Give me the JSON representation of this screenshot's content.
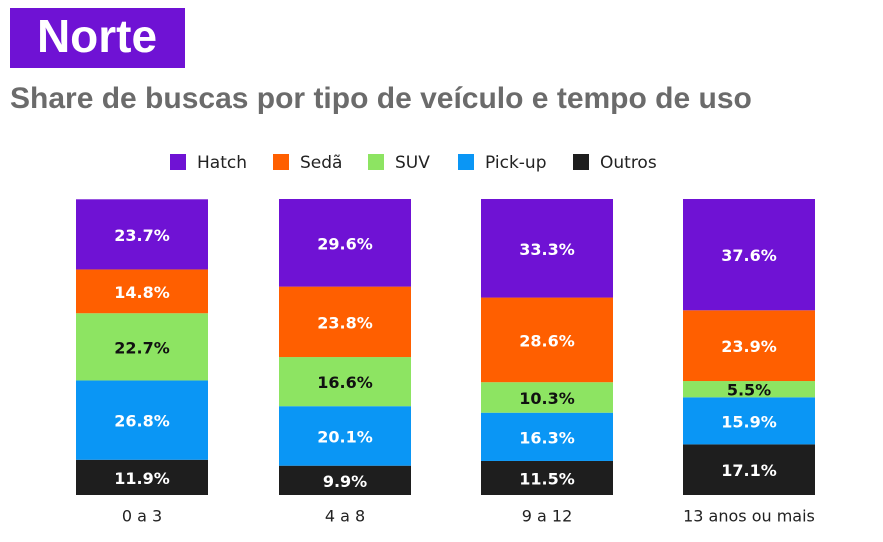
{
  "chart_data": {
    "type": "stacked_bar",
    "title": "Norte",
    "subtitle": "Share de buscas por tipo de veículo e tempo de uso",
    "categories": [
      "0 a 3",
      "4 a 8",
      "9 a 12",
      "13 anos ou mais"
    ],
    "ylim": [
      0,
      100
    ],
    "series": [
      {
        "name": "Outros",
        "color": "#1e1e1e",
        "label_color": "#ffffff",
        "values": [
          11.9,
          9.9,
          11.5,
          17.1
        ],
        "value_labels": [
          "11.9%",
          "9.9%",
          "11.5%",
          "17.1%"
        ]
      },
      {
        "name": "Pick-up",
        "color": "#0a96f5",
        "label_color": "#ffffff",
        "values": [
          26.8,
          20.1,
          16.3,
          15.9
        ],
        "value_labels": [
          "26.8%",
          "20.1%",
          "16.3%",
          "15.9%"
        ]
      },
      {
        "name": "SUV",
        "color": "#8de462",
        "label_color": "#111111",
        "values": [
          22.7,
          16.6,
          10.3,
          5.5
        ],
        "value_labels": [
          "22.7%",
          "16.6%",
          "10.3%",
          "5.5%"
        ]
      },
      {
        "name": "Sedã",
        "color": "#ff5f00",
        "label_color": "#ffffff",
        "values": [
          14.8,
          23.8,
          28.6,
          23.9
        ],
        "value_labels": [
          "14.8%",
          "23.8%",
          "28.6%",
          "23.9%"
        ]
      },
      {
        "name": "Hatch",
        "color": "#6f12d4",
        "label_color": "#ffffff",
        "values": [
          23.7,
          29.6,
          33.3,
          37.6
        ],
        "value_labels": [
          "23.7%",
          "29.6%",
          "33.3%",
          "37.6%"
        ]
      }
    ]
  }
}
